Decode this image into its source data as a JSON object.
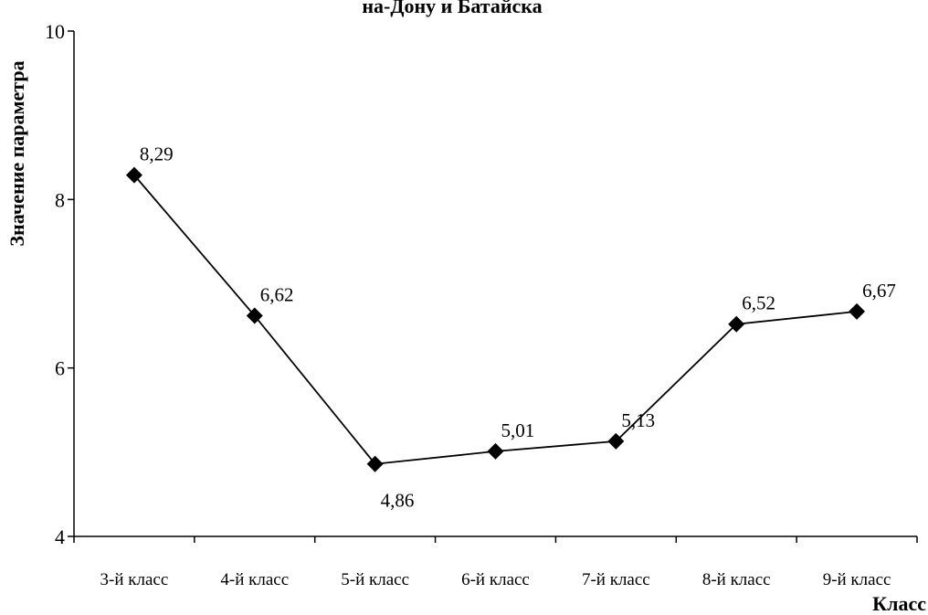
{
  "chart_data": {
    "type": "line",
    "title": "на-Дону и Батайска",
    "xlabel": "Класс",
    "ylabel": "Значение параметра",
    "categories": [
      "3-й класс",
      "4-й класс",
      "5-й класс",
      "6-й класс",
      "7-й класс",
      "8-й класс",
      "9-й класс"
    ],
    "series": [
      {
        "values": [
          8.29,
          6.62,
          4.86,
          5.01,
          5.13,
          6.52,
          6.67
        ],
        "labels": [
          "8,29",
          "6,62",
          "4,86",
          "5,01",
          "5,13",
          "6,52",
          "6,67"
        ],
        "marker": "diamond",
        "color": "#000000"
      }
    ],
    "ylim": [
      4,
      10
    ],
    "yticks": [
      4,
      6,
      8,
      10
    ],
    "ytick_labels": [
      "4",
      "6",
      "8",
      "10"
    ],
    "grid": false,
    "legend": "none"
  }
}
